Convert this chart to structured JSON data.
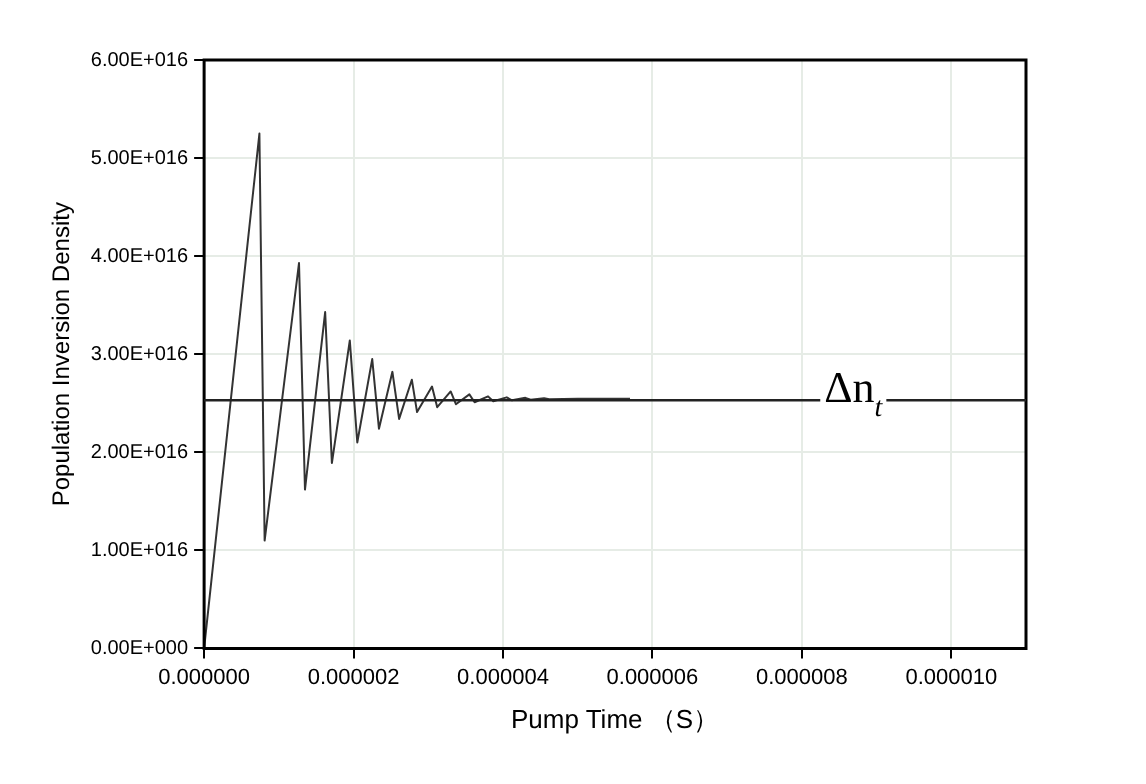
{
  "chart_data": {
    "type": "line",
    "xlabel": "Pump Time （S）",
    "ylabel": "Population Inversion Density",
    "x": [
      0,
      7.4e-07,
      8.1e-07,
      1.27e-06,
      1.35e-06,
      1.62e-06,
      1.71e-06,
      1.95e-06,
      2.05e-06,
      2.25e-06,
      2.34e-06,
      2.52e-06,
      2.61e-06,
      2.78e-06,
      2.85e-06,
      3.05e-06,
      3.12e-06,
      3.3e-06,
      3.37e-06,
      3.55e-06,
      3.62e-06,
      3.8e-06,
      3.87e-06,
      4.05e-06,
      4.12e-06,
      4.3e-06,
      4.37e-06,
      4.55e-06,
      4.62e-06,
      5e-06,
      5.7e-06
    ],
    "series": [
      {
        "color": "#333333",
        "values": [
          0,
          5.25e+16,
          1.1e+16,
          3.93e+16,
          1.62e+16,
          3.43e+16,
          1.89e+16,
          3.14e+16,
          2.1e+16,
          2.95e+16,
          2.24e+16,
          2.82e+16,
          2.34e+16,
          2.74e+16,
          2.41e+16,
          2.67e+16,
          2.46e+16,
          2.62e+16,
          2.49e+16,
          2.59e+16,
          2.51e+16,
          2.57e+16,
          2.52e+16,
          2.56e+16,
          2.53e+16,
          2.555e+16,
          2.535e+16,
          2.55e+16,
          2.54e+16,
          2.545e+16,
          2.545e+16
        ]
      }
    ],
    "xlim": [
      0,
      1.1e-05
    ],
    "ylim": [
      0,
      6e+16
    ],
    "xticks": [
      {
        "value": 0,
        "label": "0.000000"
      },
      {
        "value": 2e-06,
        "label": "0.000002"
      },
      {
        "value": 4e-06,
        "label": "0.000004"
      },
      {
        "value": 6e-06,
        "label": "0.000006"
      },
      {
        "value": 8e-06,
        "label": "0.000008"
      },
      {
        "value": 1e-05,
        "label": "0.000010"
      }
    ],
    "yticks": [
      {
        "value": 0,
        "label": "0.00E+000"
      },
      {
        "value": 1e+16,
        "label": "1.00E+016"
      },
      {
        "value": 2e+16,
        "label": "2.00E+016"
      },
      {
        "value": 3e+16,
        "label": "3.00E+016"
      },
      {
        "value": 4e+16,
        "label": "4.00E+016"
      },
      {
        "value": 5e+16,
        "label": "5.00E+016"
      },
      {
        "value": 6e+16,
        "label": "6.00E+016"
      }
    ],
    "ref_lines": [
      {
        "axis": "y",
        "value": 2.53e+16,
        "color": "#222222"
      }
    ],
    "annotations": [
      {
        "text": "Δn$_{t}$",
        "x": 8.3e-06,
        "y": 2.53e+16
      }
    ],
    "grid": true,
    "legend": false,
    "marker": "none",
    "line_style": "solid"
  }
}
